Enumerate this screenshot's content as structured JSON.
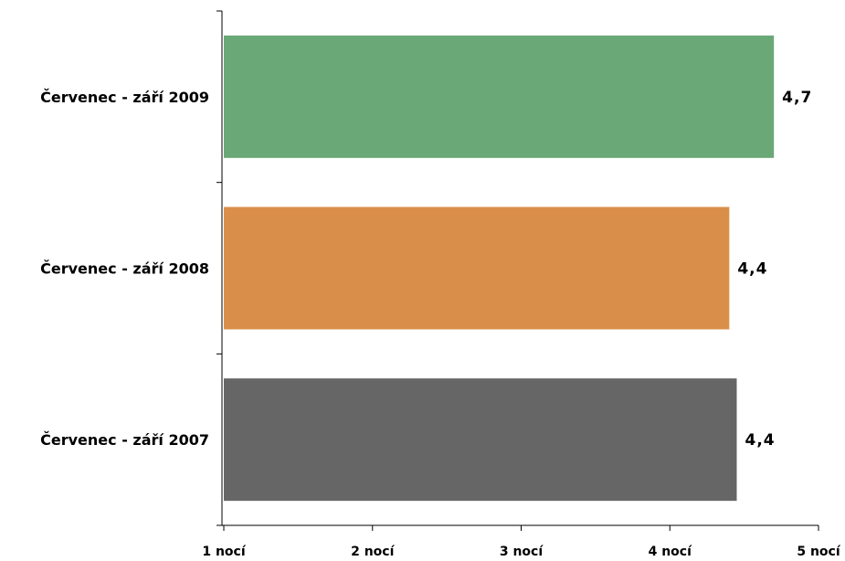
{
  "chart_data": {
    "type": "bar",
    "orientation": "horizontal",
    "categories": [
      "Červenec - září 2009",
      "Červenec - září 2008",
      "Červenec - září 2007"
    ],
    "values": [
      4.7,
      4.4,
      4.45
    ],
    "value_labels": [
      "4,7",
      "4,4",
      "4,4"
    ],
    "colors": [
      "#6aa878",
      "#d98f4a",
      "#666666"
    ],
    "xlim": [
      1,
      5
    ],
    "x_ticks": [
      1,
      2,
      3,
      4,
      5
    ],
    "x_tick_labels": [
      "1 nocí",
      "2 nocí",
      "3 nocí",
      "4 nocí",
      "5 nocí"
    ],
    "title": "",
    "xlabel": "",
    "ylabel": "",
    "grid": false,
    "legend": "none"
  }
}
